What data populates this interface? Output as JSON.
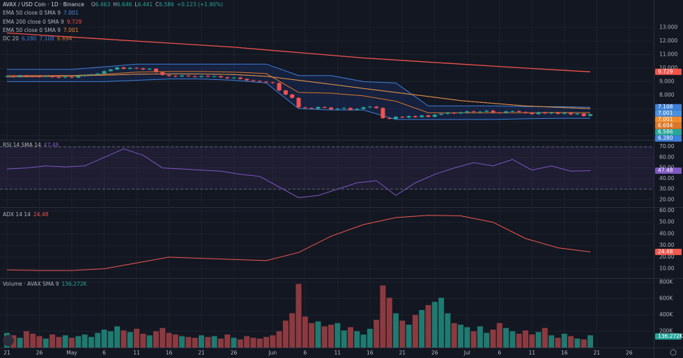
{
  "chart_data": [
    {
      "type": "candlestick",
      "title": "AVAX / USD Coin · 1D · Binance",
      "ohlc_prefixes": [
        "O",
        "H",
        "L",
        "C"
      ],
      "change_label": "+0.123 (+1.90%)",
      "categories": [
        "21",
        null,
        null,
        null,
        null,
        "26",
        null,
        null,
        null,
        null,
        "May",
        null,
        null,
        null,
        null,
        "6",
        null,
        null,
        null,
        null,
        "11",
        null,
        null,
        null,
        null,
        "16",
        null,
        null,
        null,
        null,
        "21",
        null,
        null,
        null,
        null,
        "26",
        null,
        null,
        null,
        null,
        null,
        "Jun",
        null,
        null,
        null,
        null,
        "6",
        null,
        null,
        null,
        null,
        "11",
        null,
        null,
        null,
        null,
        "16",
        null,
        null,
        null,
        null,
        "21",
        null,
        null,
        null,
        null,
        "26",
        null,
        null,
        null,
        null,
        "Jul",
        null,
        null,
        null,
        null,
        "6",
        null,
        null,
        null,
        null,
        "11",
        null,
        null,
        null,
        null,
        "16",
        null,
        null,
        null,
        null,
        "21",
        null,
        null,
        null,
        null,
        "26"
      ],
      "open": [
        9.38,
        9.4,
        9.35,
        9.45,
        9.42,
        9.38,
        9.36,
        9.4,
        9.33,
        9.3,
        9.35,
        9.3,
        9.42,
        9.48,
        9.52,
        9.6,
        9.78,
        9.9,
        10.05,
        9.95,
        10.02,
        9.98,
        9.9,
        9.95,
        9.7,
        9.5,
        9.42,
        9.38,
        9.45,
        9.4,
        9.35,
        9.42,
        9.38,
        9.4,
        9.32,
        9.25,
        9.3,
        9.2,
        9.1,
        9.05,
        9.0,
        8.95,
        8.9,
        8.35,
        8.05,
        7.8,
        7.1,
        7.05,
        7.0,
        7.12,
        7.08,
        6.95,
        7.0,
        7.05,
        6.92,
        6.98,
        7.1,
        7.15,
        7.05,
        6.3,
        6.25,
        6.4,
        6.35,
        6.45,
        6.38,
        6.5,
        6.4,
        6.55,
        6.62,
        6.7,
        6.65,
        6.72,
        6.8,
        6.75,
        6.78,
        6.85,
        6.72,
        6.7,
        6.8,
        6.82,
        6.75,
        6.68,
        6.6,
        6.72,
        6.65,
        6.7,
        6.62,
        6.68,
        6.58,
        6.64,
        6.463,
        null,
        null,
        null,
        null,
        null,
        null
      ],
      "high": [
        9.46,
        9.46,
        9.51,
        9.51,
        9.48,
        9.44,
        9.46,
        9.46,
        9.39,
        9.41,
        9.41,
        9.48,
        9.54,
        9.58,
        9.66,
        9.84,
        9.96,
        10.11,
        10.11,
        10.08,
        10.08,
        10.04,
        10.01,
        10.01,
        9.76,
        9.56,
        9.48,
        9.51,
        9.51,
        9.46,
        9.48,
        9.48,
        9.46,
        9.46,
        9.38,
        9.36,
        9.36,
        9.26,
        9.16,
        9.11,
        9.06,
        9.01,
        8.96,
        8.41,
        8.11,
        7.86,
        7.16,
        7.11,
        7.18,
        7.18,
        7.14,
        7.06,
        7.11,
        7.11,
        7.04,
        7.16,
        7.21,
        7.21,
        7.11,
        6.36,
        6.46,
        6.46,
        6.51,
        6.51,
        6.56,
        6.56,
        6.61,
        6.68,
        6.76,
        6.76,
        6.78,
        6.86,
        6.86,
        6.84,
        6.91,
        6.91,
        6.78,
        6.86,
        6.88,
        6.88,
        6.81,
        6.74,
        6.78,
        6.78,
        6.76,
        6.76,
        6.74,
        6.74,
        6.7,
        6.7,
        6.646,
        null,
        null,
        null,
        null,
        null,
        null
      ],
      "low": [
        9.32,
        9.29,
        9.29,
        9.36,
        9.32,
        9.3,
        9.3,
        9.27,
        9.24,
        9.24,
        9.24,
        9.24,
        9.36,
        9.42,
        9.46,
        9.54,
        9.72,
        9.84,
        9.89,
        9.89,
        9.92,
        9.84,
        9.84,
        9.64,
        9.44,
        9.36,
        9.32,
        9.32,
        9.34,
        9.29,
        9.29,
        9.32,
        9.32,
        9.26,
        9.19,
        9.19,
        9.14,
        9.04,
        8.99,
        8.94,
        8.89,
        8.84,
        8.29,
        7.99,
        7.74,
        7.04,
        6.99,
        6.94,
        6.94,
        7.02,
        6.89,
        6.89,
        6.94,
        6.86,
        6.86,
        6.92,
        7.04,
        6.99,
        6.24,
        6.19,
        6.19,
        6.29,
        6.29,
        6.32,
        6.32,
        6.34,
        6.34,
        6.49,
        6.56,
        6.59,
        6.59,
        6.66,
        6.69,
        6.69,
        6.72,
        6.66,
        6.64,
        6.64,
        6.74,
        6.69,
        6.62,
        6.54,
        6.54,
        6.59,
        6.59,
        6.56,
        6.56,
        6.52,
        6.52,
        6.4,
        6.441,
        null,
        null,
        null,
        null,
        null,
        null
      ],
      "close": [
        9.4,
        9.35,
        9.45,
        9.42,
        9.38,
        9.36,
        9.4,
        9.33,
        9.3,
        9.35,
        9.3,
        9.42,
        9.48,
        9.52,
        9.6,
        9.78,
        9.9,
        10.05,
        9.95,
        10.02,
        9.98,
        9.9,
        9.95,
        9.7,
        9.5,
        9.42,
        9.38,
        9.45,
        9.4,
        9.35,
        9.42,
        9.38,
        9.4,
        9.32,
        9.25,
        9.3,
        9.2,
        9.1,
        9.05,
        9.0,
        8.95,
        8.9,
        8.35,
        8.05,
        7.8,
        7.1,
        7.05,
        7.0,
        7.12,
        7.08,
        6.95,
        7.0,
        7.05,
        6.92,
        6.98,
        7.1,
        7.15,
        7.05,
        6.3,
        6.25,
        6.4,
        6.35,
        6.45,
        6.38,
        6.5,
        6.4,
        6.55,
        6.62,
        6.7,
        6.65,
        6.72,
        6.8,
        6.75,
        6.78,
        6.85,
        6.72,
        6.7,
        6.8,
        6.82,
        6.75,
        6.68,
        6.6,
        6.72,
        6.65,
        6.7,
        6.62,
        6.68,
        6.58,
        6.64,
        6.46,
        6.586,
        null,
        null,
        null,
        null,
        null,
        null
      ],
      "up_color": "#26a69a",
      "down_color": "#ef5350",
      "ylim": [
        4.6,
        13.6
      ],
      "yticks": [
        {
          "value": 5,
          "label": "5.000"
        },
        {
          "value": 6,
          "label": "6.000"
        },
        {
          "value": 7,
          "label": "7.000"
        },
        {
          "value": 8,
          "label": "8.000"
        },
        {
          "value": 9,
          "label": "9.000"
        },
        {
          "value": 10,
          "label": "10.000"
        },
        {
          "value": 11,
          "label": "11.000"
        },
        {
          "value": 12,
          "label": "12.000"
        },
        {
          "value": 13,
          "label": "13.000"
        }
      ],
      "grid": true,
      "overlay_x": [
        0,
        5,
        10,
        15,
        20,
        25,
        30,
        35,
        40,
        45,
        50,
        55,
        60,
        65,
        70,
        75,
        80,
        85,
        90
      ],
      "overlays": [
        {
          "name": "EMA 50 close 0 SMA 9",
          "color": "#4c8fdb",
          "values": [
            9.35,
            9.38,
            9.42,
            9.48,
            9.55,
            9.58,
            9.57,
            9.52,
            9.4,
            9.1,
            8.8,
            8.5,
            8.2,
            7.9,
            7.6,
            7.4,
            7.2,
            7.1,
            7.001
          ]
        },
        {
          "name": "EMA 200 close 0 SMA 9",
          "color": "#f2534b",
          "values": [
            12.6,
            12.45,
            12.3,
            12.15,
            12.0,
            11.85,
            11.7,
            11.55,
            11.35,
            11.15,
            10.95,
            10.75,
            10.6,
            10.45,
            10.3,
            10.15,
            10.0,
            9.86,
            9.729
          ]
        },
        {
          "name": "EMA 50 close 0 SMA 9",
          "color": "#f08a2c",
          "values": [
            9.35,
            9.38,
            9.42,
            9.48,
            9.55,
            9.58,
            9.57,
            9.52,
            9.4,
            9.1,
            8.8,
            8.5,
            8.2,
            7.9,
            7.6,
            7.4,
            7.2,
            7.1,
            7.001
          ]
        }
      ],
      "donchian": {
        "name": "DC 20",
        "fill": "rgba(41,98,255,0.13)",
        "lower": {
          "color": "#3f80d8",
          "values": [
            9.0,
            9.0,
            9.0,
            9.0,
            9.1,
            9.2,
            9.2,
            9.1,
            8.9,
            7.0,
            6.9,
            6.9,
            6.2,
            6.2,
            6.2,
            6.2,
            6.25,
            6.28,
            6.28
          ],
          "value_labels": [
            null,
            null,
            null,
            null,
            null,
            null,
            null,
            null,
            null,
            null,
            null,
            null,
            null,
            null,
            null,
            null,
            null,
            null,
            "6.280"
          ]
        },
        "upper": {
          "color": "#3f80d8",
          "values": [
            9.9,
            9.9,
            9.9,
            10.1,
            10.3,
            10.3,
            10.3,
            10.3,
            10.3,
            9.45,
            9.45,
            9.0,
            8.9,
            7.2,
            7.2,
            7.2,
            7.15,
            7.15,
            7.108
          ]
        },
        "basis": {
          "color": "#d9772b",
          "values": [
            9.45,
            9.45,
            9.45,
            9.55,
            9.7,
            9.75,
            9.75,
            9.7,
            9.6,
            8.2,
            8.15,
            7.95,
            7.55,
            6.7,
            6.7,
            6.7,
            6.7,
            6.72,
            6.694
          ]
        }
      }
    },
    {
      "type": "line",
      "title": "RSI 14 SMA 14",
      "x": [
        0,
        3,
        6,
        9,
        12,
        15,
        18,
        21,
        24,
        27,
        30,
        33,
        36,
        39,
        42,
        45,
        48,
        51,
        54,
        57,
        60,
        63,
        66,
        69,
        72,
        75,
        78,
        81,
        84,
        87,
        90
      ],
      "series": [
        {
          "color": "#7e57c2",
          "values": [
            49,
            50,
            52,
            51,
            52,
            60,
            68,
            62,
            50,
            49,
            48,
            47,
            44,
            42,
            32,
            22,
            24,
            30,
            36,
            38,
            24,
            36,
            44,
            50,
            55,
            52,
            58,
            48,
            52,
            47,
            47.48
          ]
        }
      ],
      "ylim": [
        13,
        76
      ],
      "yticks": [
        {
          "value": 20,
          "label": "20.00"
        },
        {
          "value": 30,
          "label": "30.00"
        },
        {
          "value": 40,
          "label": "40.00"
        },
        {
          "value": 50,
          "label": "50.00"
        },
        {
          "value": 60,
          "label": "60.00"
        },
        {
          "value": 70,
          "label": "70.00"
        }
      ],
      "grid": true,
      "bands": [
        70,
        30
      ],
      "band_fill": "rgba(126,87,194,0.1)"
    },
    {
      "type": "line",
      "title": "ADX 14 14",
      "x": [
        0,
        5,
        10,
        15,
        20,
        25,
        30,
        35,
        40,
        45,
        50,
        55,
        60,
        65,
        70,
        75,
        80,
        85,
        90
      ],
      "series": [
        {
          "color": "#f05a50",
          "values": [
            9,
            8.5,
            8.5,
            10,
            15,
            20,
            19,
            18,
            17,
            24,
            38,
            48,
            54,
            56,
            55.5,
            50,
            36,
            28,
            24.48
          ]
        }
      ],
      "ylim": [
        2,
        63
      ],
      "yticks": [
        {
          "value": 10,
          "label": "10.00"
        },
        {
          "value": 20,
          "label": "20.00"
        },
        {
          "value": 30,
          "label": "30.00"
        },
        {
          "value": 40,
          "label": "40.00"
        },
        {
          "value": 50,
          "label": "50.00"
        },
        {
          "value": 60,
          "label": "60.00"
        }
      ],
      "grid": true
    },
    {
      "type": "bar",
      "title": "Volume · AVAX SMA 9",
      "values": [
        180000,
        150000,
        120000,
        200000,
        170000,
        140000,
        110000,
        160000,
        130000,
        150000,
        120000,
        140000,
        160000,
        130000,
        180000,
        220000,
        200000,
        260000,
        210000,
        190000,
        230000,
        170000,
        150000,
        200000,
        240000,
        180000,
        160000,
        140000,
        130000,
        120000,
        150000,
        130000,
        140000,
        110000,
        160000,
        120000,
        100000,
        140000,
        120000,
        110000,
        130000,
        150000,
        200000,
        330000,
        420000,
        780000,
        380000,
        300000,
        320000,
        260000,
        280000,
        300000,
        210000,
        250000,
        200000,
        160000,
        230000,
        340000,
        760000,
        610000,
        420000,
        330000,
        280000,
        400000,
        460000,
        520000,
        560000,
        610000,
        420000,
        300000,
        280000,
        250000,
        200000,
        260000,
        180000,
        220000,
        300000,
        240000,
        200000,
        170000,
        210000,
        160000,
        190000,
        240000,
        150000,
        120000,
        170000,
        140000,
        110000,
        100000,
        150000,
        null,
        null,
        null,
        null,
        null,
        null
      ],
      "up_color": "#1f7a70",
      "down_color": "#8c3a40",
      "sma": {
        "value": 136272,
        "label": "136.272K",
        "color": "#26a69a"
      },
      "ylim": [
        0,
        851000
      ],
      "yticks": [
        {
          "value": 200000,
          "label": "200K"
        },
        {
          "value": 400000,
          "label": "400K"
        },
        {
          "value": 600000,
          "label": "600K"
        },
        {
          "value": 800000,
          "label": "800K"
        }
      ],
      "grid": true
    }
  ]
}
